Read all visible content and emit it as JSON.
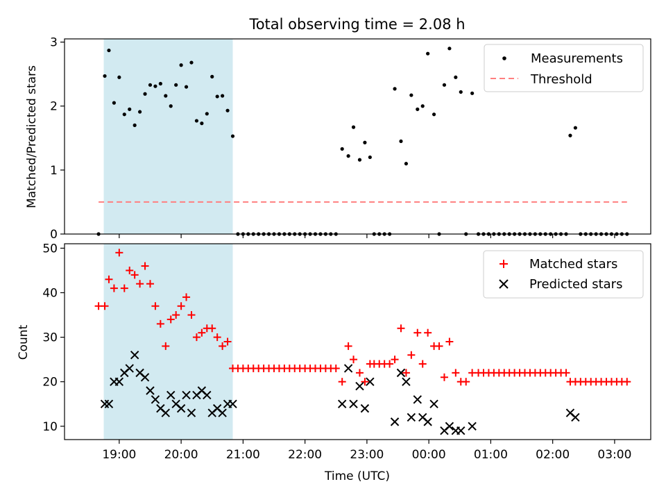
{
  "figure": {
    "title": "Total observing time = 2.08 h",
    "background": "#ffffff",
    "highlight_color": "#add8e6",
    "highlight_span": [
      "18:45",
      "20:50"
    ]
  },
  "chart_data": [
    {
      "type": "scatter",
      "title": "Total observing time = 2.08 h",
      "xlabel": "",
      "ylabel": "Matched/Predicted stars",
      "x_unit": "time (UTC), starting 2024-01-01 evening; times after 00:00 are next day",
      "xlim": [
        "18:07",
        "03:35"
      ],
      "ylim": [
        0,
        3.05
      ],
      "yticks": [
        0,
        1,
        2,
        3
      ],
      "xticks_visible_labels": false,
      "legend_position": "top-right",
      "legend": [
        "Measurements",
        "Threshold"
      ],
      "series": [
        {
          "name": "Measurements",
          "marker": "dot",
          "color": "#000000",
          "points": [
            [
              "18:40",
              0.0
            ],
            [
              "18:46",
              2.47
            ],
            [
              "18:50",
              2.87
            ],
            [
              "18:55",
              2.05
            ],
            [
              "19:00",
              2.45
            ],
            [
              "19:05",
              1.87
            ],
            [
              "19:10",
              1.95
            ],
            [
              "19:15",
              1.7
            ],
            [
              "19:20",
              1.91
            ],
            [
              "19:25",
              2.19
            ],
            [
              "19:30",
              2.33
            ],
            [
              "19:35",
              2.31
            ],
            [
              "19:40",
              2.35
            ],
            [
              "19:45",
              2.16
            ],
            [
              "19:50",
              2.0
            ],
            [
              "19:55",
              2.33
            ],
            [
              "20:00",
              2.64
            ],
            [
              "20:05",
              2.3
            ],
            [
              "20:10",
              2.68
            ],
            [
              "20:15",
              1.77
            ],
            [
              "20:20",
              1.73
            ],
            [
              "20:25",
              1.88
            ],
            [
              "20:30",
              2.46
            ],
            [
              "20:35",
              2.15
            ],
            [
              "20:40",
              2.16
            ],
            [
              "20:45",
              1.93
            ],
            [
              "20:50",
              1.53
            ],
            [
              "20:55",
              0.0
            ],
            [
              "21:00",
              0.0
            ],
            [
              "21:05",
              0.0
            ],
            [
              "21:10",
              0.0
            ],
            [
              "21:15",
              0.0
            ],
            [
              "21:20",
              0.0
            ],
            [
              "21:25",
              0.0
            ],
            [
              "21:30",
              0.0
            ],
            [
              "21:35",
              0.0
            ],
            [
              "21:40",
              0.0
            ],
            [
              "21:45",
              0.0
            ],
            [
              "21:50",
              0.0
            ],
            [
              "21:55",
              0.0
            ],
            [
              "22:00",
              0.0
            ],
            [
              "22:05",
              0.0
            ],
            [
              "22:10",
              0.0
            ],
            [
              "22:15",
              0.0
            ],
            [
              "22:20",
              0.0
            ],
            [
              "22:25",
              0.0
            ],
            [
              "22:30",
              0.0
            ],
            [
              "22:36",
              1.33
            ],
            [
              "22:42",
              1.22
            ],
            [
              "22:47",
              1.67
            ],
            [
              "22:53",
              1.16
            ],
            [
              "22:58",
              1.43
            ],
            [
              "23:03",
              1.2
            ],
            [
              "23:07",
              0.0
            ],
            [
              "23:12",
              0.0
            ],
            [
              "23:17",
              0.0
            ],
            [
              "23:22",
              0.0
            ],
            [
              "23:27",
              2.27
            ],
            [
              "23:33",
              1.45
            ],
            [
              "23:38",
              1.1
            ],
            [
              "23:43",
              2.17
            ],
            [
              "23:49",
              1.95
            ],
            [
              "23:54",
              2.0
            ],
            [
              "23:59",
              2.82
            ],
            [
              "00:05",
              1.87
            ],
            [
              "00:10",
              0.0
            ],
            [
              "00:15",
              2.33
            ],
            [
              "00:20",
              2.9
            ],
            [
              "00:26",
              2.45
            ],
            [
              "00:31",
              2.22
            ],
            [
              "00:36",
              0.0
            ],
            [
              "00:42",
              2.2
            ],
            [
              "00:48",
              0.0
            ],
            [
              "00:53",
              0.0
            ],
            [
              "00:58",
              0.0
            ],
            [
              "01:03",
              0.0
            ],
            [
              "01:08",
              0.0
            ],
            [
              "01:13",
              0.0
            ],
            [
              "01:18",
              0.0
            ],
            [
              "01:23",
              0.0
            ],
            [
              "01:28",
              0.0
            ],
            [
              "01:33",
              0.0
            ],
            [
              "01:38",
              0.0
            ],
            [
              "01:43",
              0.0
            ],
            [
              "01:48",
              0.0
            ],
            [
              "01:53",
              0.0
            ],
            [
              "01:58",
              0.0
            ],
            [
              "02:03",
              0.0
            ],
            [
              "02:08",
              0.0
            ],
            [
              "02:13",
              0.0
            ],
            [
              "02:17",
              1.54
            ],
            [
              "02:22",
              1.66
            ],
            [
              "02:27",
              0.0
            ],
            [
              "02:32",
              0.0
            ],
            [
              "02:37",
              0.0
            ],
            [
              "02:42",
              0.0
            ],
            [
              "02:47",
              0.0
            ],
            [
              "02:52",
              0.0
            ],
            [
              "02:57",
              0.0
            ],
            [
              "03:02",
              0.0
            ],
            [
              "03:07",
              0.0
            ],
            [
              "03:12",
              0.0
            ]
          ]
        },
        {
          "name": "Threshold",
          "style": "dashed",
          "color": "#ff7f7f",
          "points": [
            [
              "18:40",
              0.5
            ],
            [
              "03:12",
              0.5
            ]
          ]
        }
      ]
    },
    {
      "type": "scatter",
      "title": "",
      "xlabel": "Time (UTC)",
      "ylabel": "Count",
      "xlim": [
        "18:07",
        "03:35"
      ],
      "ylim": [
        7,
        51
      ],
      "yticks": [
        10,
        20,
        30,
        40,
        50
      ],
      "xticks": [
        "19:00",
        "20:00",
        "21:00",
        "22:00",
        "23:00",
        "00:00",
        "01:00",
        "02:00",
        "03:00"
      ],
      "legend_position": "top-right",
      "legend": [
        "Matched stars",
        "Predicted stars"
      ],
      "series": [
        {
          "name": "Matched stars",
          "marker": "plus",
          "color": "#ff0000",
          "points": [
            [
              "18:40",
              37
            ],
            [
              "18:46",
              37
            ],
            [
              "18:50",
              43
            ],
            [
              "18:55",
              41
            ],
            [
              "19:00",
              49
            ],
            [
              "19:05",
              41
            ],
            [
              "19:10",
              45
            ],
            [
              "19:15",
              44
            ],
            [
              "19:20",
              42
            ],
            [
              "19:25",
              46
            ],
            [
              "19:30",
              42
            ],
            [
              "19:35",
              37
            ],
            [
              "19:40",
              33
            ],
            [
              "19:45",
              28
            ],
            [
              "19:50",
              34
            ],
            [
              "19:55",
              35
            ],
            [
              "20:00",
              37
            ],
            [
              "20:05",
              39
            ],
            [
              "20:10",
              35
            ],
            [
              "20:15",
              30
            ],
            [
              "20:20",
              31
            ],
            [
              "20:25",
              32
            ],
            [
              "20:30",
              32
            ],
            [
              "20:35",
              30
            ],
            [
              "20:40",
              28
            ],
            [
              "20:45",
              29
            ],
            [
              "20:50",
              23
            ],
            [
              "20:55",
              23
            ],
            [
              "21:00",
              23
            ],
            [
              "21:05",
              23
            ],
            [
              "21:10",
              23
            ],
            [
              "21:15",
              23
            ],
            [
              "21:20",
              23
            ],
            [
              "21:25",
              23
            ],
            [
              "21:30",
              23
            ],
            [
              "21:35",
              23
            ],
            [
              "21:40",
              23
            ],
            [
              "21:45",
              23
            ],
            [
              "21:50",
              23
            ],
            [
              "21:55",
              23
            ],
            [
              "22:00",
              23
            ],
            [
              "22:05",
              23
            ],
            [
              "22:10",
              23
            ],
            [
              "22:15",
              23
            ],
            [
              "22:20",
              23
            ],
            [
              "22:25",
              23
            ],
            [
              "22:30",
              23
            ],
            [
              "22:36",
              20
            ],
            [
              "22:42",
              28
            ],
            [
              "22:47",
              25
            ],
            [
              "22:53",
              22
            ],
            [
              "22:58",
              20
            ],
            [
              "23:03",
              24
            ],
            [
              "23:07",
              24
            ],
            [
              "23:12",
              24
            ],
            [
              "23:17",
              24
            ],
            [
              "23:22",
              24
            ],
            [
              "23:27",
              25
            ],
            [
              "23:33",
              32
            ],
            [
              "23:38",
              22
            ],
            [
              "23:43",
              26
            ],
            [
              "23:49",
              31
            ],
            [
              "23:54",
              24
            ],
            [
              "23:59",
              31
            ],
            [
              "00:05",
              28
            ],
            [
              "00:10",
              28
            ],
            [
              "00:15",
              21
            ],
            [
              "00:20",
              29
            ],
            [
              "00:26",
              22
            ],
            [
              "00:31",
              20
            ],
            [
              "00:36",
              20
            ],
            [
              "00:42",
              22
            ],
            [
              "00:48",
              22
            ],
            [
              "00:53",
              22
            ],
            [
              "00:58",
              22
            ],
            [
              "01:03",
              22
            ],
            [
              "01:08",
              22
            ],
            [
              "01:13",
              22
            ],
            [
              "01:18",
              22
            ],
            [
              "01:23",
              22
            ],
            [
              "01:28",
              22
            ],
            [
              "01:33",
              22
            ],
            [
              "01:38",
              22
            ],
            [
              "01:43",
              22
            ],
            [
              "01:48",
              22
            ],
            [
              "01:53",
              22
            ],
            [
              "01:58",
              22
            ],
            [
              "02:03",
              22
            ],
            [
              "02:08",
              22
            ],
            [
              "02:13",
              22
            ],
            [
              "02:17",
              20
            ],
            [
              "02:22",
              20
            ],
            [
              "02:27",
              20
            ],
            [
              "02:32",
              20
            ],
            [
              "02:37",
              20
            ],
            [
              "02:42",
              20
            ],
            [
              "02:47",
              20
            ],
            [
              "02:52",
              20
            ],
            [
              "02:57",
              20
            ],
            [
              "03:02",
              20
            ],
            [
              "03:07",
              20
            ],
            [
              "03:12",
              20
            ]
          ]
        },
        {
          "name": "Predicted stars",
          "marker": "x",
          "color": "#000000",
          "points": [
            [
              "18:46",
              15
            ],
            [
              "18:50",
              15
            ],
            [
              "18:55",
              20
            ],
            [
              "19:00",
              20
            ],
            [
              "19:05",
              22
            ],
            [
              "19:10",
              23
            ],
            [
              "19:15",
              26
            ],
            [
              "19:20",
              22
            ],
            [
              "19:25",
              21
            ],
            [
              "19:30",
              18
            ],
            [
              "19:35",
              16
            ],
            [
              "19:40",
              14
            ],
            [
              "19:45",
              13
            ],
            [
              "19:50",
              17
            ],
            [
              "19:55",
              15
            ],
            [
              "20:00",
              14
            ],
            [
              "20:05",
              17
            ],
            [
              "20:10",
              13
            ],
            [
              "20:15",
              17
            ],
            [
              "20:20",
              18
            ],
            [
              "20:25",
              17
            ],
            [
              "20:30",
              13
            ],
            [
              "20:35",
              14
            ],
            [
              "20:40",
              13
            ],
            [
              "20:45",
              15
            ],
            [
              "20:50",
              15
            ],
            [
              "22:36",
              15
            ],
            [
              "22:42",
              23
            ],
            [
              "22:47",
              15
            ],
            [
              "22:53",
              19
            ],
            [
              "22:58",
              14
            ],
            [
              "23:03",
              20
            ],
            [
              "23:27",
              11
            ],
            [
              "23:33",
              22
            ],
            [
              "23:38",
              20
            ],
            [
              "23:43",
              12
            ],
            [
              "23:49",
              16
            ],
            [
              "23:54",
              12
            ],
            [
              "23:59",
              11
            ],
            [
              "00:05",
              15
            ],
            [
              "00:15",
              9
            ],
            [
              "00:20",
              10
            ],
            [
              "00:26",
              9
            ],
            [
              "00:31",
              9
            ],
            [
              "00:42",
              10
            ],
            [
              "02:17",
              13
            ],
            [
              "02:22",
              12
            ]
          ]
        }
      ]
    }
  ]
}
